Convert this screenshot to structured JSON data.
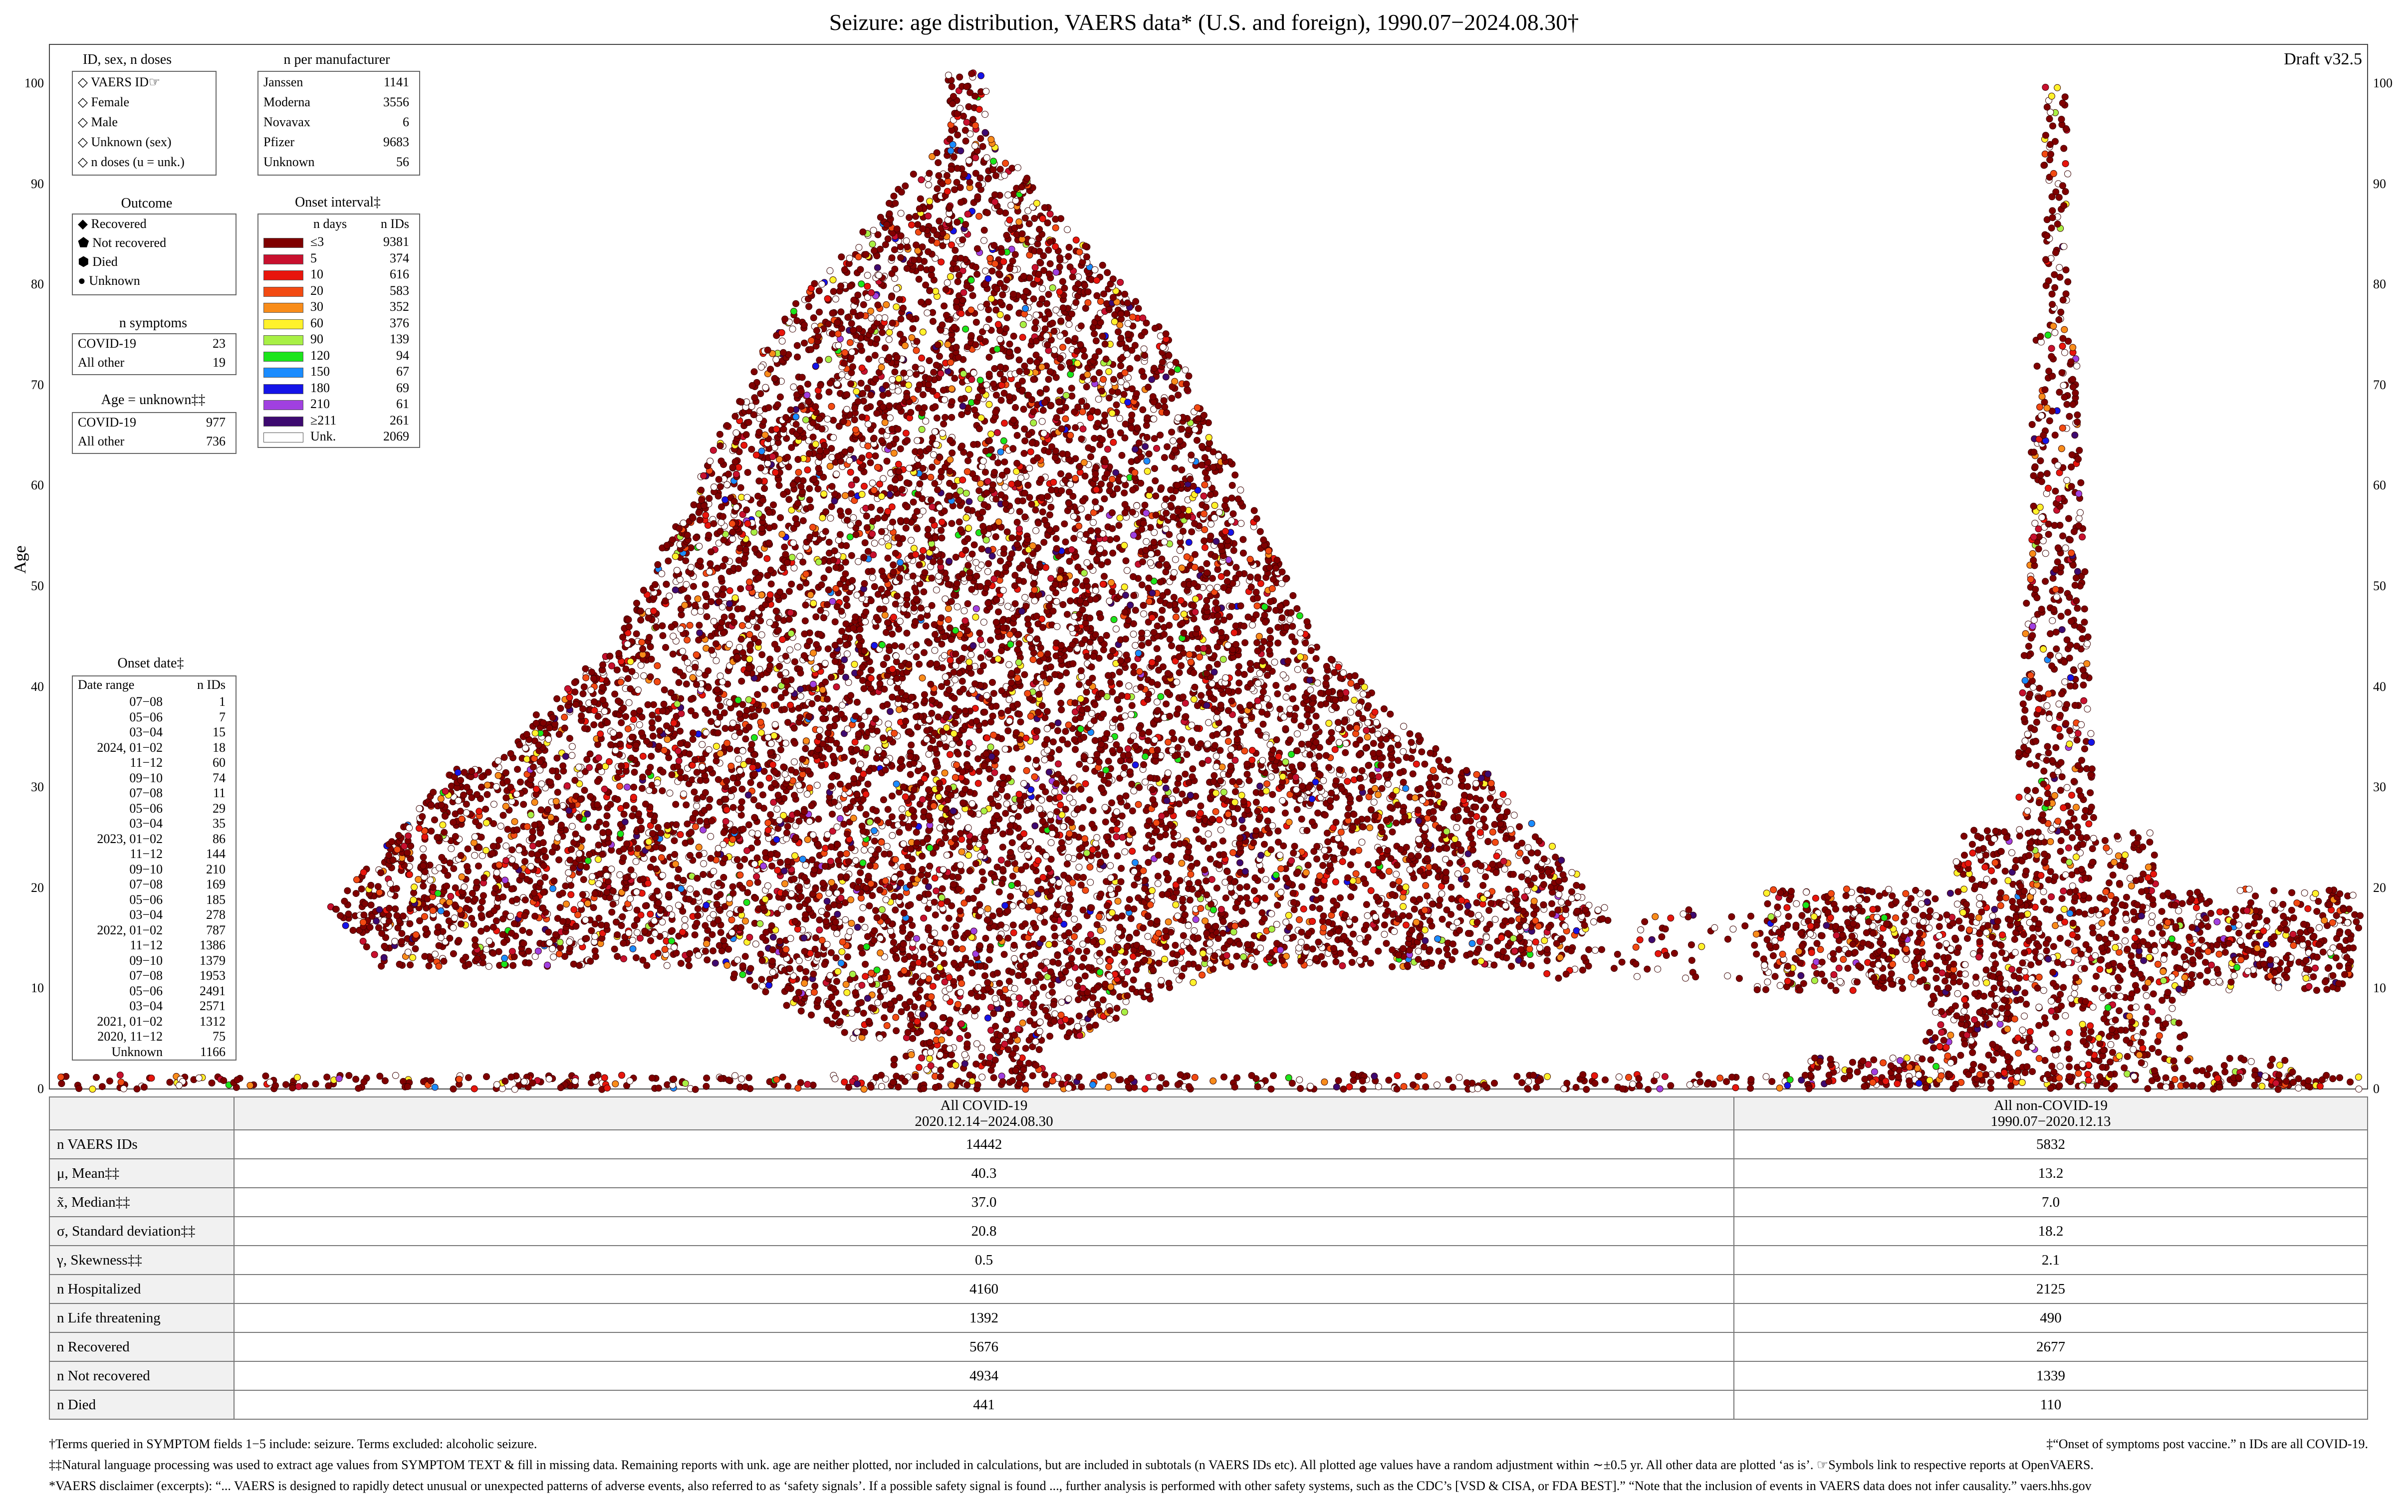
{
  "title": "Seizure: age distribution, VAERS data* (U.S. and foreign), 1990.07−2024.08.30†",
  "draft": "Draft v32.5",
  "y_axis_label": "Age",
  "y_ticks": [
    "0",
    "10",
    "20",
    "30",
    "40",
    "50",
    "60",
    "70",
    "80",
    "90",
    "100"
  ],
  "legend_id": {
    "title": "ID, sex, n doses",
    "items": [
      "VAERS ID☞",
      "Female",
      "Male",
      "Unknown (sex)",
      "n doses (u = unk.)"
    ]
  },
  "legend_manufacturer": {
    "title": "n per manufacturer",
    "items": [
      {
        "name": "Janssen",
        "n": "1141"
      },
      {
        "name": "Moderna",
        "n": "3556"
      },
      {
        "name": "Novavax",
        "n": "6"
      },
      {
        "name": "Pfizer",
        "n": "9683"
      },
      {
        "name": "Unknown",
        "n": "56"
      }
    ]
  },
  "legend_outcome": {
    "title": "Outcome",
    "items": [
      "Recovered",
      "Not recovered",
      "Died",
      "Unknown"
    ]
  },
  "legend_onset_interval": {
    "title": "Onset interval‡",
    "col_days": "n days",
    "col_ids": "n IDs",
    "items": [
      {
        "days": "≤3",
        "n": "9381",
        "color": "#7f0000"
      },
      {
        "days": "5",
        "n": "374",
        "color": "#c8102e"
      },
      {
        "days": "10",
        "n": "616",
        "color": "#e8150c"
      },
      {
        "days": "20",
        "n": "583",
        "color": "#f24a12"
      },
      {
        "days": "30",
        "n": "352",
        "color": "#f88c1a"
      },
      {
        "days": "60",
        "n": "376",
        "color": "#fff22b"
      },
      {
        "days": "90",
        "n": "139",
        "color": "#a8f045"
      },
      {
        "days": "120",
        "n": "94",
        "color": "#1be51b"
      },
      {
        "days": "150",
        "n": "67",
        "color": "#1a8cff"
      },
      {
        "days": "180",
        "n": "69",
        "color": "#1414e8"
      },
      {
        "days": "210",
        "n": "61",
        "color": "#a040e0"
      },
      {
        "days": "≥211",
        "n": "261",
        "color": "#3d0a70"
      },
      {
        "days": "Unk.",
        "n": "2069",
        "color": "#ffffff"
      }
    ]
  },
  "legend_symptoms": {
    "title": "n symptoms",
    "items": [
      {
        "name": "COVID-19",
        "n": "23"
      },
      {
        "name": "All other",
        "n": "19"
      }
    ]
  },
  "legend_age_unknown": {
    "title": "Age = unknown‡‡",
    "items": [
      {
        "name": "COVID-19",
        "n": "977"
      },
      {
        "name": "All other",
        "n": "736"
      }
    ]
  },
  "legend_onset_date": {
    "title": "Onset date‡",
    "col_range": "Date range",
    "col_ids": "n IDs",
    "items": [
      {
        "range": "07−08",
        "n": "1"
      },
      {
        "range": "05−06",
        "n": "7"
      },
      {
        "range": "03−04",
        "n": "15"
      },
      {
        "range": "2024, 01−02",
        "n": "18"
      },
      {
        "range": "11−12",
        "n": "60"
      },
      {
        "range": "09−10",
        "n": "74"
      },
      {
        "range": "07−08",
        "n": "11"
      },
      {
        "range": "05−06",
        "n": "29"
      },
      {
        "range": "03−04",
        "n": "35"
      },
      {
        "range": "2023, 01−02",
        "n": "86"
      },
      {
        "range": "11−12",
        "n": "144"
      },
      {
        "range": "09−10",
        "n": "210"
      },
      {
        "range": "07−08",
        "n": "169"
      },
      {
        "range": "05−06",
        "n": "185"
      },
      {
        "range": "03−04",
        "n": "278"
      },
      {
        "range": "2022, 01−02",
        "n": "787"
      },
      {
        "range": "11−12",
        "n": "1386"
      },
      {
        "range": "09−10",
        "n": "1379"
      },
      {
        "range": "07−08",
        "n": "1953"
      },
      {
        "range": "05−06",
        "n": "2491"
      },
      {
        "range": "03−04",
        "n": "2571"
      },
      {
        "range": "2021, 01−02",
        "n": "1312"
      },
      {
        "range": "2020, 11−12",
        "n": "75"
      },
      {
        "range": "Unknown",
        "n": "1166"
      }
    ]
  },
  "stats_table": {
    "col1_title": "All COVID-19",
    "col1_dates": "2020.12.14−2024.08.30",
    "col2_title": "All non-COVID-19",
    "col2_dates": "1990.07−2020.12.13",
    "rows": [
      {
        "label": "n VAERS IDs",
        "covid": "14442",
        "non_covid": "5832"
      },
      {
        "label": "μ, Mean‡‡",
        "covid": "40.3",
        "non_covid": "13.2"
      },
      {
        "label": "x̃, Median‡‡",
        "covid": "37.0",
        "non_covid": "7.0"
      },
      {
        "label": "σ, Standard deviation‡‡",
        "covid": "20.8",
        "non_covid": "18.2"
      },
      {
        "label": "γ, Skewness‡‡",
        "covid": "0.5",
        "non_covid": "2.1"
      },
      {
        "label": "n Hospitalized",
        "covid": "4160",
        "non_covid": "2125"
      },
      {
        "label": "n Life threatening",
        "covid": "1392",
        "non_covid": "490"
      },
      {
        "label": "n Recovered",
        "covid": "5676",
        "non_covid": "2677"
      },
      {
        "label": "n Not recovered",
        "covid": "4934",
        "non_covid": "1339"
      },
      {
        "label": "n Died",
        "covid": "441",
        "non_covid": "110"
      }
    ]
  },
  "footnotes": {
    "dagger": "†Terms queried in SYMPTOM fields 1−5 include: seizure. Terms excluded: alcoholic seizure.",
    "ddagger": "‡“Onset of symptoms post vaccine.” n IDs are all COVID-19.",
    "ddagger2": "‡‡Natural language processing was used to extract age values from SYMPTOM TEXT & fill in missing data. Remaining reports with unk. age are neither plotted, nor included in calculations, but are included in subtotals (n VAERS IDs etc). All plotted age values have a random adjustment within ∼±0.5 yr. All other data are plotted ‘as is’.   ☞Symbols link to respective reports at OpenVAERS.",
    "disclaimer": "*VAERS disclaimer (excerpts): “... VAERS is designed to rapidly detect unusual or unexpected patterns of adverse events, also referred to as ‘safety signals’. If a possible safety signal is found ..., further analysis is performed with other safety systems, such as the CDC’s [VSD & CISA, or FDA BEST].” “Note that the inclusion of events in VAERS data does not infer causality.”   vaers.hhs.gov"
  },
  "chart_data": {
    "type": "scatter",
    "title": "Seizure: age distribution, VAERS data* (U.S. and foreign), 1990.07−2024.08.30†",
    "ylabel": "Age",
    "ylim": [
      0,
      100
    ],
    "series": [
      {
        "name": "All COVID-19",
        "n": 14442,
        "mean": 40.3,
        "median": 37.0,
        "sd": 20.8,
        "skew": 0.5
      },
      {
        "name": "All non-COVID-19",
        "n": 5832,
        "mean": 13.2,
        "median": 7.0,
        "sd": 18.2,
        "skew": 2.1
      }
    ],
    "note": "Beeswarm plot of individual VAERS IDs by age, colored by onset interval"
  }
}
